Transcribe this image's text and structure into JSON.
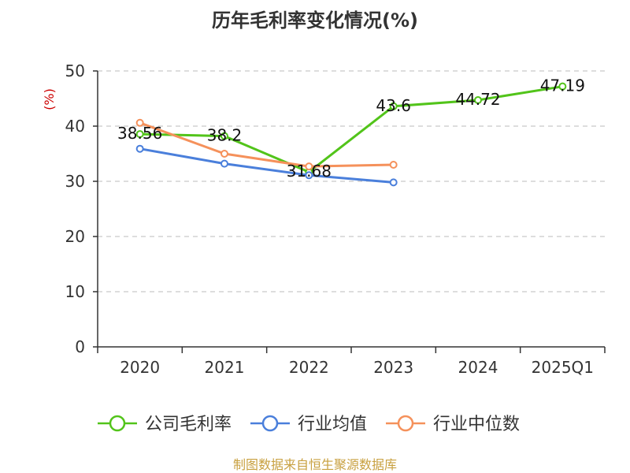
{
  "chart_data": {
    "type": "line",
    "title": "历年毛利率变化情况(%)",
    "ylabel": "(%)",
    "xlabel": "",
    "categories": [
      "2020",
      "2021",
      "2022",
      "2023",
      "2024",
      "2025Q1"
    ],
    "ylim": [
      0,
      50
    ],
    "yticks": [
      0,
      10,
      20,
      30,
      40,
      50
    ],
    "grid": true,
    "legend_position": "bottom",
    "series": [
      {
        "name": "公司毛利率",
        "color": "#52c41a",
        "values": [
          38.56,
          38.2,
          31.68,
          43.6,
          44.72,
          47.19
        ],
        "labels": [
          "38.56",
          "38.2",
          "31.68",
          "43.6",
          "44.72",
          "47.19"
        ]
      },
      {
        "name": "行业均值",
        "color": "#4a7fdb",
        "values": [
          35.9,
          33.2,
          31.1,
          29.8,
          null,
          null
        ]
      },
      {
        "name": "行业中位数",
        "color": "#f5915b",
        "values": [
          40.6,
          35.0,
          32.7,
          33.0,
          null,
          null
        ]
      }
    ]
  },
  "source_text": "制图数据来自恒生聚源数据库",
  "colors": {
    "title": "#333333",
    "ylabel": "#cc0000",
    "source": "#c8a040"
  }
}
